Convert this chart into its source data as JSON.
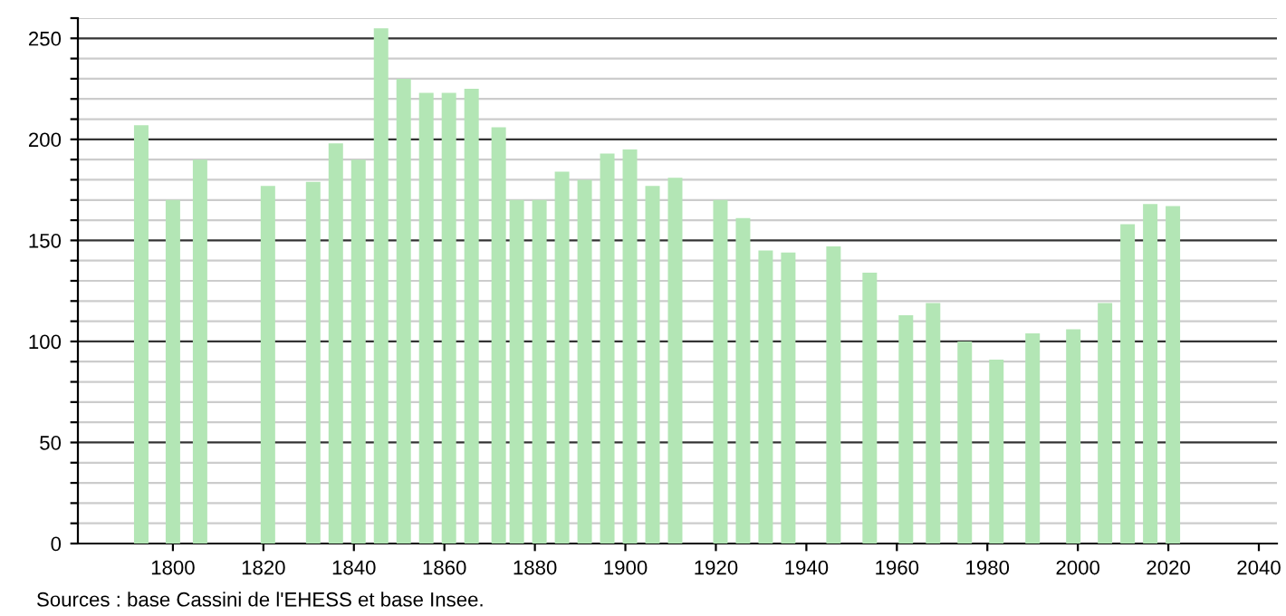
{
  "chart_data": {
    "type": "bar",
    "x": [
      1793,
      1800,
      1806,
      1821,
      1831,
      1836,
      1841,
      1846,
      1851,
      1856,
      1861,
      1866,
      1872,
      1876,
      1881,
      1886,
      1891,
      1896,
      1901,
      1906,
      1911,
      1921,
      1926,
      1931,
      1936,
      1946,
      1954,
      1962,
      1968,
      1975,
      1982,
      1990,
      1999,
      2006,
      2011,
      2016,
      2021
    ],
    "values": [
      207,
      170,
      190,
      177,
      179,
      198,
      190,
      255,
      230,
      223,
      223,
      225,
      206,
      170,
      170,
      184,
      180,
      193,
      195,
      177,
      181,
      170,
      161,
      145,
      144,
      147,
      134,
      113,
      119,
      100,
      91,
      104,
      106,
      119,
      158,
      168,
      167
    ],
    "color": "#b3e6b5",
    "xlim": [
      1779,
      2044
    ],
    "xticks": [
      1800,
      1820,
      1840,
      1860,
      1880,
      1900,
      1920,
      1940,
      1960,
      1980,
      2000,
      2020,
      2040
    ],
    "ylim": [
      0,
      260
    ],
    "yticks": [
      0,
      {
        "value": 10,
        "label": null
      },
      {
        "value": 20,
        "label": null
      },
      {
        "value": 30,
        "label": null
      },
      {
        "value": 40,
        "label": null
      },
      50,
      {
        "value": 60,
        "label": null
      },
      {
        "value": 70,
        "label": null
      },
      {
        "value": 80,
        "label": null
      },
      {
        "value": 90,
        "label": null
      },
      100,
      {
        "value": 110,
        "label": null
      },
      {
        "value": 120,
        "label": null
      },
      {
        "value": 130,
        "label": null
      },
      {
        "value": 140,
        "label": null
      },
      150,
      {
        "value": 160,
        "label": null
      },
      {
        "value": 170,
        "label": null
      },
      {
        "value": 180,
        "label": null
      },
      {
        "value": 190,
        "label": null
      },
      200,
      {
        "value": 210,
        "label": null
      },
      {
        "value": 220,
        "label": null
      },
      {
        "value": 230,
        "label": null
      },
      {
        "value": 240,
        "label": null
      },
      250,
      {
        "value": 260,
        "label": null
      }
    ],
    "grid": "y",
    "annotations": [
      "Sources : base Cassini de l'EHESS et base Insee."
    ]
  }
}
